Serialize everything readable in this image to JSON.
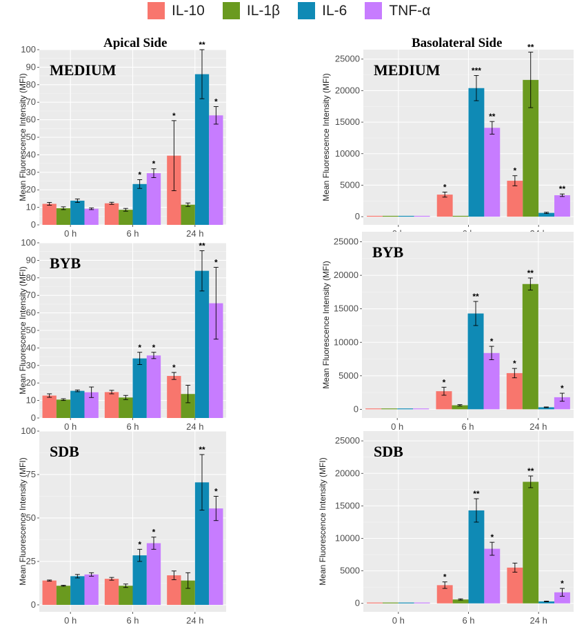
{
  "legend": [
    {
      "label": "IL-10",
      "color": "#F8766D"
    },
    {
      "label": "IL-1β",
      "color": "#6A9A1F"
    },
    {
      "label": "IL-6",
      "color": "#0F8AB5"
    },
    {
      "label": "TNF-α",
      "color": "#C77CFF"
    }
  ],
  "columns": {
    "apical": "Apical Side",
    "basolateral": "Basolateral Side"
  },
  "chart_data": [
    {
      "type": "bar",
      "title": "MEDIUM",
      "side": "Apical Side",
      "categories": [
        "0 h",
        "6 h",
        "24 h"
      ],
      "ylabel": "Mean Fluorescence Intensity (MFI)",
      "ylim": [
        0,
        100
      ],
      "yticks": [
        0,
        10,
        20,
        30,
        40,
        50,
        60,
        70,
        80,
        90,
        100
      ],
      "series": [
        {
          "name": "IL-10",
          "values": [
            12,
            12.3,
            39.5
          ],
          "errors": [
            0.8,
            0.6,
            20
          ],
          "sig": [
            "",
            "",
            "*"
          ]
        },
        {
          "name": "IL-1β",
          "values": [
            9.5,
            8.6,
            11.5
          ],
          "errors": [
            0.8,
            0.8,
            1
          ],
          "sig": [
            "",
            "",
            ""
          ]
        },
        {
          "name": "IL-6",
          "values": [
            13.8,
            23.3,
            86
          ],
          "errors": [
            1,
            2.5,
            14
          ],
          "sig": [
            "",
            "*",
            "**"
          ]
        },
        {
          "name": "TNF-α",
          "values": [
            9.2,
            29.5,
            62.5
          ],
          "errors": [
            0.5,
            2.5,
            5
          ],
          "sig": [
            "",
            "*",
            "*"
          ]
        }
      ]
    },
    {
      "type": "bar",
      "title": "MEDIUM",
      "side": "Basolateral Side",
      "categories": [
        "0 h",
        "6 h",
        "24 h"
      ],
      "ylabel": "Mean Fluorescence Intensity (MFI)",
      "ylim": [
        -1300,
        26500
      ],
      "yticks": [
        0,
        5000,
        10000,
        15000,
        20000,
        25000
      ],
      "series": [
        {
          "name": "IL-10",
          "values": [
            0,
            3500,
            5700
          ],
          "errors": [
            0,
            400,
            800
          ],
          "sig": [
            "",
            "*",
            "*"
          ]
        },
        {
          "name": "IL-1β",
          "values": [
            0,
            100,
            21700
          ],
          "errors": [
            0,
            0,
            4400
          ],
          "sig": [
            "",
            "",
            "**"
          ]
        },
        {
          "name": "IL-6",
          "values": [
            0,
            20400,
            600
          ],
          "errors": [
            0,
            2000,
            100
          ],
          "sig": [
            "",
            "***",
            ""
          ]
        },
        {
          "name": "TNF-α",
          "values": [
            0,
            14100,
            3400
          ],
          "errors": [
            0,
            1000,
            200
          ],
          "sig": [
            "",
            "**",
            "**"
          ]
        }
      ]
    },
    {
      "type": "bar",
      "title": "BYB",
      "side": "Apical Side",
      "categories": [
        "0 h",
        "6 h",
        "24 h"
      ],
      "ylabel": "Mean Fluorescence Intensity (MFI)",
      "ylim": [
        0,
        100
      ],
      "yticks": [
        0,
        10,
        20,
        30,
        40,
        50,
        60,
        70,
        80,
        90,
        100
      ],
      "series": [
        {
          "name": "IL-10",
          "values": [
            12.8,
            14.8,
            24
          ],
          "errors": [
            1,
            1,
            2
          ],
          "sig": [
            "",
            "",
            "*"
          ]
        },
        {
          "name": "IL-1β",
          "values": [
            10.5,
            11.7,
            13.7
          ],
          "errors": [
            0.5,
            1.2,
            5
          ],
          "sig": [
            "",
            "",
            ""
          ]
        },
        {
          "name": "IL-6",
          "values": [
            15.5,
            34,
            84
          ],
          "errors": [
            0.5,
            3.5,
            11.5
          ],
          "sig": [
            "",
            "*",
            "**"
          ]
        },
        {
          "name": "TNF-α",
          "values": [
            14.7,
            35.7,
            65.5
          ],
          "errors": [
            3,
            1.8,
            20.5
          ],
          "sig": [
            "",
            "*",
            "*"
          ]
        }
      ]
    },
    {
      "type": "bar",
      "title": "BYB",
      "side": "Basolateral Side",
      "categories": [
        "0 h",
        "6 h",
        "24 h"
      ],
      "ylabel": "Mean Fluorescence Intensity (MFI)",
      "ylim": [
        -1300,
        26500
      ],
      "yticks": [
        0,
        5000,
        10000,
        15000,
        20000,
        25000
      ],
      "series": [
        {
          "name": "IL-10",
          "values": [
            0,
            2700,
            5400
          ],
          "errors": [
            0,
            600,
            700
          ],
          "sig": [
            "",
            "*",
            "*"
          ]
        },
        {
          "name": "IL-1β",
          "values": [
            0,
            600,
            18700
          ],
          "errors": [
            0,
            100,
            900
          ],
          "sig": [
            "",
            "",
            "**"
          ]
        },
        {
          "name": "IL-6",
          "values": [
            0,
            14300,
            300
          ],
          "errors": [
            0,
            1800,
            50
          ],
          "sig": [
            "",
            "**",
            ""
          ]
        },
        {
          "name": "TNF-α",
          "values": [
            0,
            8400,
            1800
          ],
          "errors": [
            0,
            1000,
            600
          ],
          "sig": [
            "",
            "*",
            "*"
          ]
        }
      ]
    },
    {
      "type": "bar",
      "title": "SDB",
      "side": "Apical Side",
      "categories": [
        "0 h",
        "6 h",
        "24 h"
      ],
      "ylabel": "Mean Fluorescence Intensity (MFI)",
      "ylim": [
        -4,
        100
      ],
      "yticks": [
        0,
        25,
        50,
        75,
        100
      ],
      "series": [
        {
          "name": "IL-10",
          "values": [
            14,
            15,
            17
          ],
          "errors": [
            0.3,
            0.8,
            2.5
          ],
          "sig": [
            "",
            "",
            ""
          ]
        },
        {
          "name": "IL-1β",
          "values": [
            11,
            11,
            14
          ],
          "errors": [
            0.3,
            1,
            4.5
          ],
          "sig": [
            "",
            "",
            ""
          ]
        },
        {
          "name": "IL-6",
          "values": [
            16.5,
            28.5,
            70.5
          ],
          "errors": [
            1,
            3.5,
            16
          ],
          "sig": [
            "",
            "*",
            "**"
          ]
        },
        {
          "name": "TNF-α",
          "values": [
            17.5,
            35.5,
            55.5
          ],
          "errors": [
            1,
            3.5,
            7
          ],
          "sig": [
            "",
            "*",
            "*"
          ]
        }
      ]
    },
    {
      "type": "bar",
      "title": "SDB",
      "side": "Basolateral Side",
      "categories": [
        "0 h",
        "6 h",
        "24 h"
      ],
      "ylabel": "Mean Fluorescence Intensity (MFI)",
      "ylim": [
        -1300,
        26500
      ],
      "yticks": [
        0,
        5000,
        10000,
        15000,
        20000,
        25000
      ],
      "series": [
        {
          "name": "IL-10",
          "values": [
            0,
            2800,
            5500
          ],
          "errors": [
            0,
            500,
            700
          ],
          "sig": [
            "",
            "*",
            ""
          ]
        },
        {
          "name": "IL-1β",
          "values": [
            0,
            600,
            18700
          ],
          "errors": [
            0,
            100,
            900
          ],
          "sig": [
            "",
            "",
            "**"
          ]
        },
        {
          "name": "IL-6",
          "values": [
            0,
            14300,
            300
          ],
          "errors": [
            0,
            1800,
            50
          ],
          "sig": [
            "",
            "**",
            ""
          ]
        },
        {
          "name": "TNF-α",
          "values": [
            0,
            8400,
            1700
          ],
          "errors": [
            0,
            1000,
            600
          ],
          "sig": [
            "",
            "*",
            "*"
          ]
        }
      ]
    }
  ]
}
